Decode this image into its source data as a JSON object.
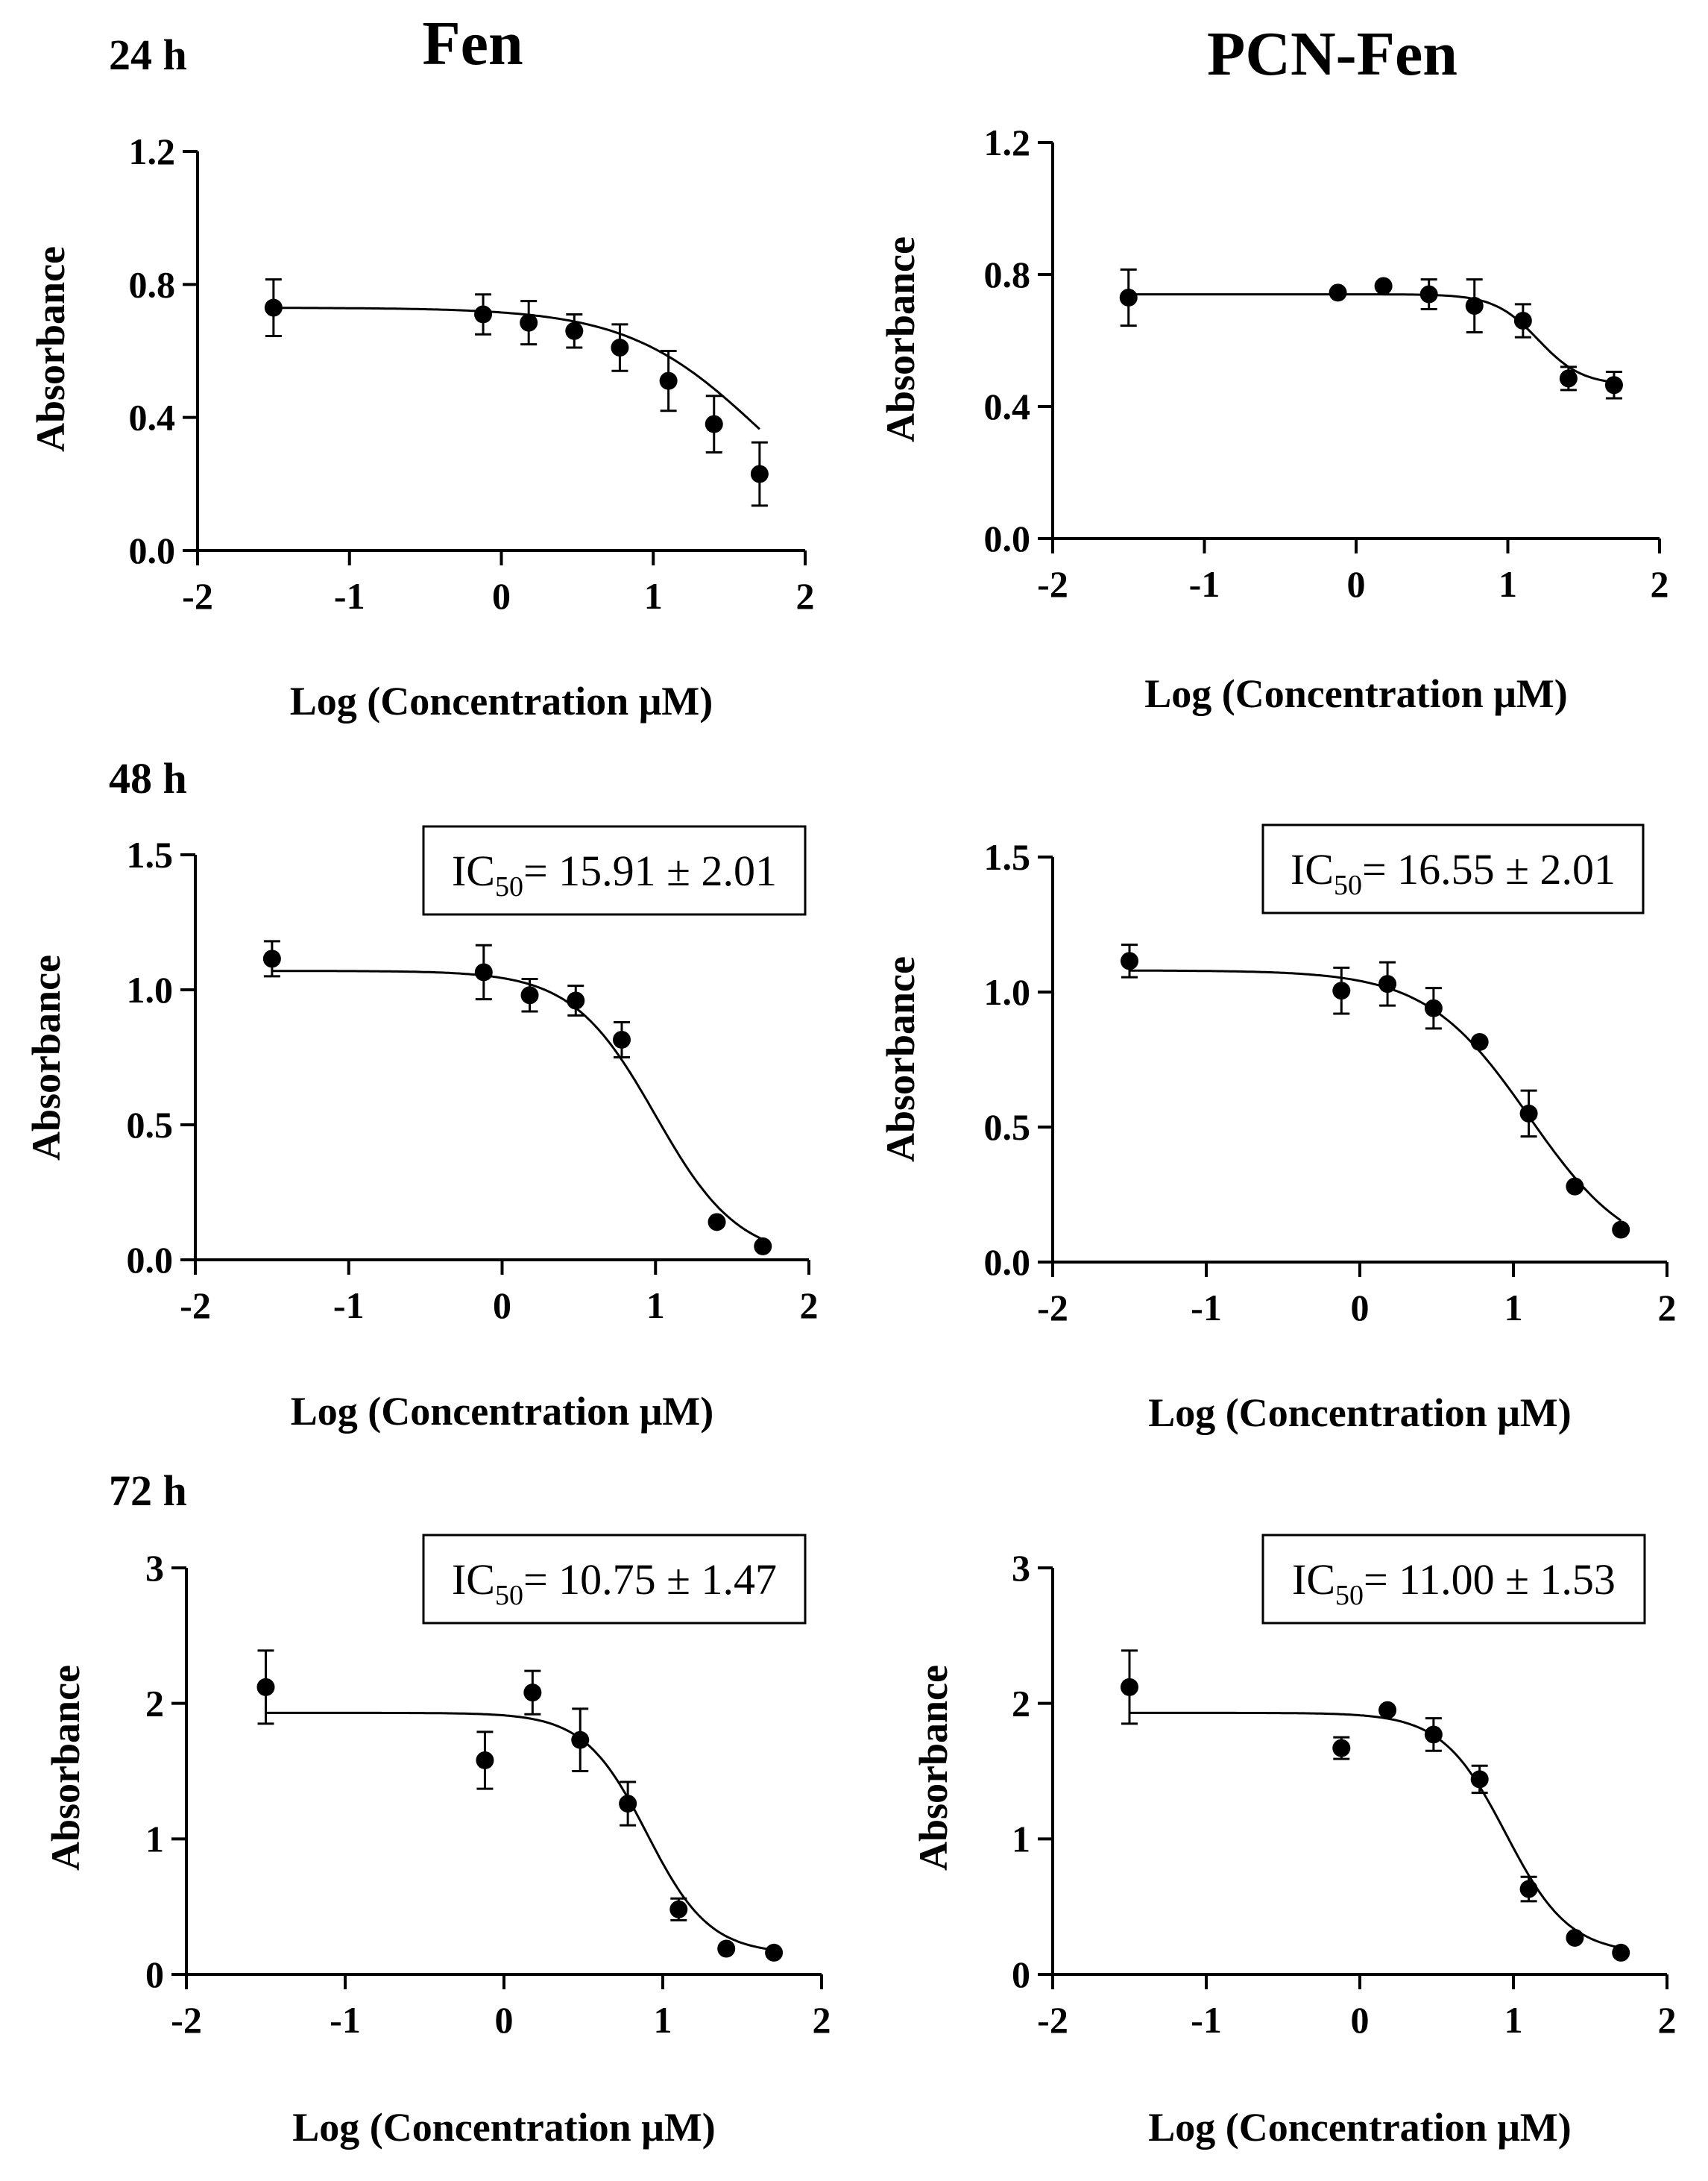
{
  "column_titles": [
    "Fen",
    "PCN-Fen"
  ],
  "row_labels": [
    "24 h",
    "48 h",
    "72 h"
  ],
  "chart_data": [
    {
      "type": "scatter",
      "fit": "sigmoidal dose-response",
      "compound": "Fen",
      "time": "24 h",
      "xlabel": "Log (Concentration μM)",
      "ylabel": "Absorbance",
      "xlim": [
        -2,
        2
      ],
      "ylim": [
        0,
        1.2
      ],
      "x_ticks": [
        -2,
        -1,
        0,
        1,
        2
      ],
      "y_ticks": [
        0,
        0.4,
        0.8,
        1.2
      ],
      "x_tick_labels": [
        "-2",
        "-1",
        "0",
        "1",
        "2"
      ],
      "y_tick_labels": [
        "0.0",
        "0.4",
        "0.8",
        "1.2"
      ],
      "x": [
        -1.5,
        -0.12,
        0.18,
        0.48,
        0.78,
        1.1,
        1.4,
        1.7
      ],
      "y": [
        0.73,
        0.71,
        0.685,
        0.66,
        0.61,
        0.51,
        0.38,
        0.23
      ],
      "error": [
        0.085,
        0.06,
        0.065,
        0.05,
        0.07,
        0.09,
        0.085,
        0.095
      ],
      "curve": {
        "top": 0.73,
        "bottom": 0.0,
        "logEC50": 1.7,
        "hill": 1.0
      },
      "ic50_label": null
    },
    {
      "type": "scatter",
      "fit": "sigmoidal dose-response",
      "compound": "PCN-Fen",
      "time": "24 h",
      "xlabel": "Log (Concentration μM)",
      "ylabel": "Absorbance",
      "xlim": [
        -2,
        2
      ],
      "ylim": [
        0,
        1.2
      ],
      "x_ticks": [
        -2,
        -1,
        0,
        1,
        2
      ],
      "y_ticks": [
        0,
        0.4,
        0.8,
        1.2
      ],
      "x_tick_labels": [
        "-2",
        "-1",
        "0",
        "1",
        "2"
      ],
      "y_tick_labels": [
        "0.0",
        "0.4",
        "0.8",
        "1.2"
      ],
      "x": [
        -1.5,
        -0.12,
        0.18,
        0.48,
        0.78,
        1.1,
        1.4,
        1.7
      ],
      "y": [
        0.73,
        0.745,
        0.765,
        0.74,
        0.705,
        0.66,
        0.485,
        0.465
      ],
      "error": [
        0.085,
        0.025,
        0.012,
        0.045,
        0.08,
        0.05,
        0.035,
        0.04
      ],
      "curve": {
        "top": 0.74,
        "bottom": 0.465,
        "logEC50": 1.2,
        "hill": 3.0
      },
      "ic50_label": null
    },
    {
      "type": "scatter",
      "fit": "sigmoidal dose-response",
      "compound": "Fen",
      "time": "48 h",
      "xlabel": "Log (Concentration μM)",
      "ylabel": "Absorbance",
      "xlim": [
        -2,
        2
      ],
      "ylim": [
        0,
        1.5
      ],
      "x_ticks": [
        -2,
        -1,
        0,
        1,
        2
      ],
      "y_ticks": [
        0,
        0.5,
        1.0,
        1.5
      ],
      "x_tick_labels": [
        "-2",
        "-1",
        "0",
        "1",
        "2"
      ],
      "y_tick_labels": [
        "0.0",
        "0.5",
        "1.0",
        "1.5"
      ],
      "x": [
        -1.5,
        -0.12,
        0.18,
        0.48,
        0.78,
        1.4,
        1.7
      ],
      "y": [
        1.115,
        1.065,
        0.98,
        0.96,
        0.815,
        0.14,
        0.05
      ],
      "error": [
        0.065,
        0.1,
        0.06,
        0.055,
        0.065,
        0.01,
        0.01
      ],
      "curve": {
        "top": 1.07,
        "bottom": 0.0,
        "logEC50": 1.0,
        "hill": 1.6
      },
      "ic50_label": {
        "prefix": "IC",
        "sub": "50",
        "value": "= 15.91 ± 2.01"
      }
    },
    {
      "type": "scatter",
      "fit": "sigmoidal dose-response",
      "compound": "PCN-Fen",
      "time": "48 h",
      "xlabel": "Log (Concentration μM)",
      "ylabel": "Absorbance",
      "xlim": [
        -2,
        2
      ],
      "ylim": [
        0,
        1.5
      ],
      "x_ticks": [
        -2,
        -1,
        0,
        1,
        2
      ],
      "y_ticks": [
        0,
        0.5,
        1.0,
        1.5
      ],
      "x_tick_labels": [
        "-2",
        "-1",
        "0",
        "1",
        "2"
      ],
      "y_tick_labels": [
        "0.0",
        "0.5",
        "1.0",
        "1.5"
      ],
      "x": [
        -1.5,
        -0.12,
        0.18,
        0.48,
        0.78,
        1.1,
        1.4,
        1.7
      ],
      "y": [
        1.115,
        1.005,
        1.03,
        0.94,
        0.815,
        0.55,
        0.28,
        0.12
      ],
      "error": [
        0.06,
        0.085,
        0.08,
        0.075,
        0.03,
        0.085,
        0.012,
        0.012
      ],
      "curve": {
        "top": 1.08,
        "bottom": 0.0,
        "logEC50": 1.1,
        "hill": 1.3
      },
      "ic50_label": {
        "prefix": "IC",
        "sub": "50",
        "value": "= 16.55 ± 2.01"
      }
    },
    {
      "type": "scatter",
      "fit": "sigmoidal dose-response",
      "compound": "Fen",
      "time": "72 h",
      "xlabel": "Log (Concentration μM)",
      "ylabel": "Absorbance",
      "xlim": [
        -2,
        2
      ],
      "ylim": [
        0,
        3
      ],
      "x_ticks": [
        -2,
        -1,
        0,
        1,
        2
      ],
      "y_ticks": [
        0,
        1,
        2,
        3
      ],
      "x_tick_labels": [
        "-2",
        "-1",
        "0",
        "1",
        "2"
      ],
      "y_tick_labels": [
        "0",
        "1",
        "2",
        "3"
      ],
      "x": [
        -1.5,
        -0.12,
        0.18,
        0.48,
        0.78,
        1.1,
        1.4,
        1.7
      ],
      "y": [
        2.12,
        1.58,
        2.08,
        1.73,
        1.26,
        0.48,
        0.19,
        0.16
      ],
      "error": [
        0.27,
        0.21,
        0.16,
        0.23,
        0.16,
        0.08,
        0.02,
        0.02
      ],
      "curve": {
        "top": 1.93,
        "bottom": 0.15,
        "logEC50": 0.9,
        "hill": 2.2
      },
      "ic50_label": {
        "prefix": "IC",
        "sub": "50",
        "value": "= 10.75 ± 1.47"
      }
    },
    {
      "type": "scatter",
      "fit": "sigmoidal dose-response",
      "compound": "PCN-Fen",
      "time": "72 h",
      "xlabel": "Log (Concentration μM)",
      "ylabel": "Absorbance",
      "xlim": [
        -2,
        2
      ],
      "ylim": [
        0,
        3
      ],
      "x_ticks": [
        -2,
        -1,
        0,
        1,
        2
      ],
      "y_ticks": [
        0,
        1,
        2,
        3
      ],
      "x_tick_labels": [
        "-2",
        "-1",
        "0",
        "1",
        "2"
      ],
      "y_tick_labels": [
        "0",
        "1",
        "2",
        "3"
      ],
      "x": [
        -1.5,
        -0.12,
        0.18,
        0.48,
        0.78,
        1.1,
        1.4,
        1.7
      ],
      "y": [
        2.12,
        1.67,
        1.95,
        1.77,
        1.44,
        0.63,
        0.27,
        0.16
      ],
      "error": [
        0.27,
        0.08,
        0.07,
        0.12,
        0.1,
        0.09,
        0.02,
        0.02
      ],
      "curve": {
        "top": 1.93,
        "bottom": 0.15,
        "logEC50": 0.95,
        "hill": 2.1
      },
      "ic50_label": {
        "prefix": "IC",
        "sub": "50",
        "value": "= 11.00 ± 1.53"
      }
    }
  ]
}
